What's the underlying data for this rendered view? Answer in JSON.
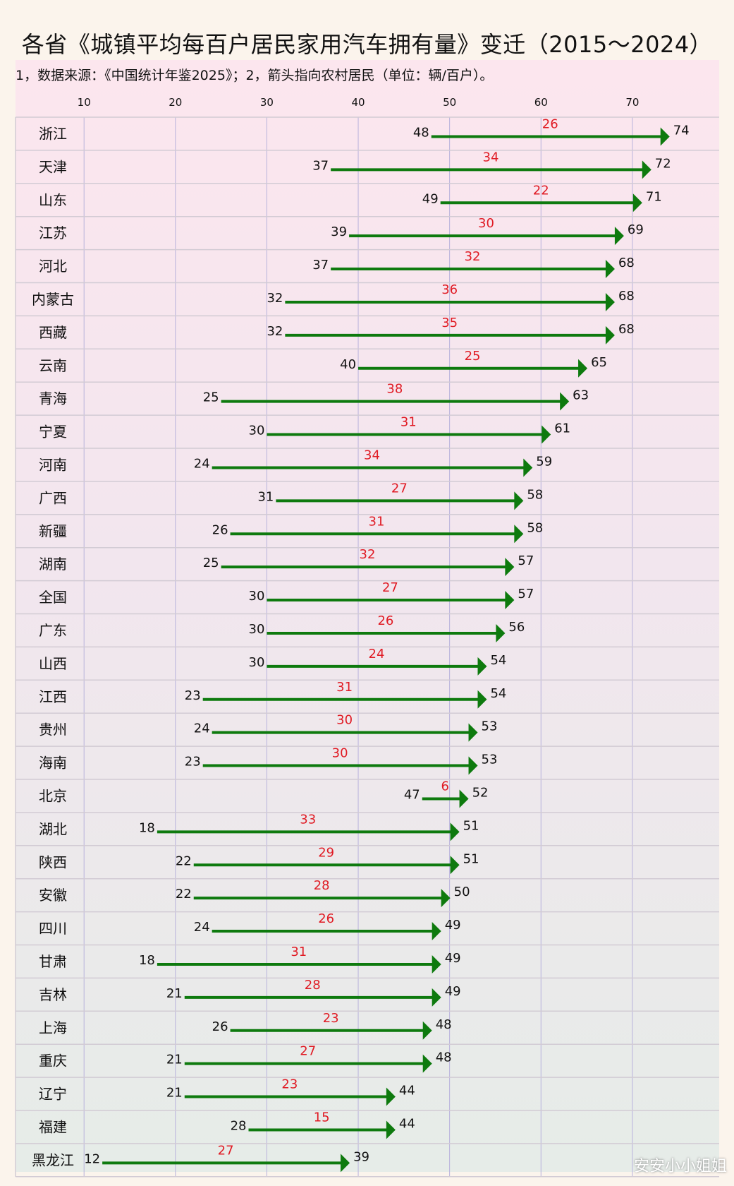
{
  "title": "各省《城镇平均每百户居民家用汽车拥有量》变迁（2015～2024）",
  "subtitle": "1，数据来源：《中国统计年鉴2025》；2，箭头指向农村居民（单位：辆/百户）。",
  "watermark": "安安小小姐姐",
  "colors": {
    "arrow": "#0e7a0e",
    "diff": "#e01b24",
    "grid": "#c9c0d8"
  },
  "chart_data": {
    "type": "arrow",
    "title": "各省《城镇平均每百户居民家用汽车拥有量》变迁（2015～2024）",
    "xticks": [
      10,
      20,
      30,
      40,
      50,
      60,
      70
    ],
    "xlim": [
      2.5,
      79.5
    ],
    "series": [
      {
        "name": "2015",
        "values": [
          48,
          37,
          49,
          39,
          37,
          32,
          32,
          40,
          25,
          30,
          24,
          31,
          26,
          25,
          30,
          30,
          30,
          23,
          24,
          23,
          47,
          18,
          22,
          22,
          24,
          18,
          21,
          26,
          21,
          21,
          28,
          12
        ]
      },
      {
        "name": "2024",
        "values": [
          74,
          72,
          71,
          69,
          68,
          68,
          68,
          65,
          63,
          61,
          59,
          58,
          58,
          57,
          57,
          56,
          54,
          54,
          53,
          53,
          52,
          51,
          51,
          50,
          49,
          49,
          49,
          48,
          48,
          44,
          44,
          39
        ]
      }
    ],
    "categories": [
      "浙江",
      "天津",
      "山东",
      "江苏",
      "河北",
      "内蒙古",
      "西藏",
      "云南",
      "青海",
      "宁夏",
      "河南",
      "广西",
      "新疆",
      "湖南",
      "全国",
      "广东",
      "山西",
      "江西",
      "贵州",
      "海南",
      "北京",
      "湖北",
      "陕西",
      "安徽",
      "四川",
      "甘肃",
      "吉林",
      "上海",
      "重庆",
      "辽宁",
      "福建",
      "黑龙江"
    ],
    "increase": [
      26,
      34,
      22,
      30,
      32,
      36,
      35,
      25,
      38,
      31,
      34,
      27,
      31,
      32,
      27,
      26,
      24,
      31,
      30,
      30,
      6,
      33,
      29,
      28,
      26,
      31,
      28,
      23,
      27,
      23,
      15,
      27
    ]
  }
}
